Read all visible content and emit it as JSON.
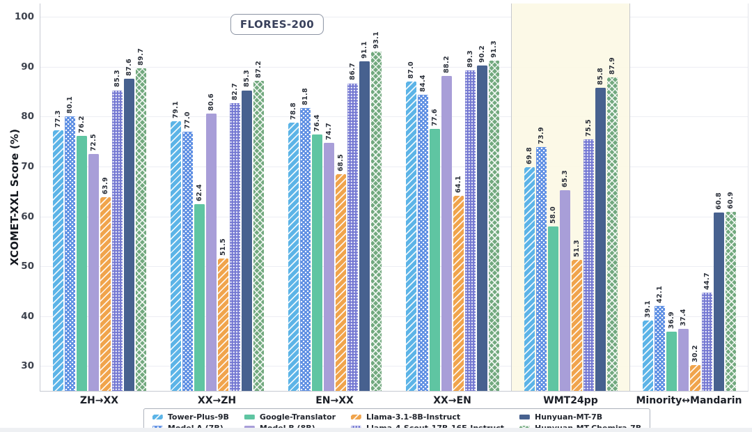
{
  "chart_data": {
    "type": "bar",
    "title_badge": "FLORES-200",
    "ylabel": "XCOMET-XXL Score (%)",
    "categories": [
      "ZH→XX",
      "XX→ZH",
      "EN→XX",
      "XX→EN",
      "WMT24pp",
      "Minority↔Mandarin"
    ],
    "series": [
      {
        "name": "Tower-Plus-9B",
        "color": "#5CB4E7",
        "pattern": "diagonal",
        "values": [
          77.3,
          79.1,
          78.8,
          87.0,
          69.8,
          39.1
        ]
      },
      {
        "name": "Model A (7B)",
        "color": "#5E8FE3",
        "pattern": "dots",
        "values": [
          80.1,
          77.0,
          81.8,
          84.4,
          73.9,
          42.1
        ]
      },
      {
        "name": "Google-Translator",
        "color": "#5FC5A2",
        "pattern": "solid",
        "values": [
          76.2,
          62.4,
          76.4,
          77.6,
          58.0,
          36.9
        ]
      },
      {
        "name": "Model B (8B)",
        "color": "#A89ED8",
        "pattern": "solid",
        "values": [
          72.5,
          80.6,
          74.7,
          88.2,
          65.3,
          37.4
        ]
      },
      {
        "name": "Llama-3.1-8B-Instruct",
        "color": "#F0A44C",
        "pattern": "diagonal",
        "values": [
          63.9,
          51.5,
          68.5,
          64.1,
          51.3,
          30.2
        ]
      },
      {
        "name": "Llama-4-Scout-17B-16E-Instruct",
        "color": "#7478D2",
        "pattern": "grid-dots",
        "values": [
          85.3,
          82.7,
          86.7,
          89.3,
          75.5,
          44.7
        ]
      },
      {
        "name": "Hunyuan-MT-7B",
        "color": "#47618F",
        "pattern": "solid",
        "values": [
          87.6,
          85.3,
          91.1,
          90.2,
          85.8,
          60.8
        ]
      },
      {
        "name": "Hunyuan-MT-Chemira-7B",
        "color": "#72A97E",
        "pattern": "crosshatch",
        "values": [
          89.7,
          87.2,
          93.1,
          91.3,
          87.9,
          60.9
        ]
      }
    ],
    "yticks": [
      30,
      40,
      50,
      60,
      70,
      80,
      90,
      100
    ],
    "ylim": [
      25,
      102.7
    ],
    "grid": "horizontal",
    "gridline_color": "#ecedf3",
    "value_label_decimals": 1,
    "legend_position": "bottom",
    "legend_rows": 2,
    "highlight": {
      "category": "WMT24pp",
      "index": 4,
      "fill": "#FCF8E5",
      "separator_color": "#c6c8cd"
    }
  }
}
